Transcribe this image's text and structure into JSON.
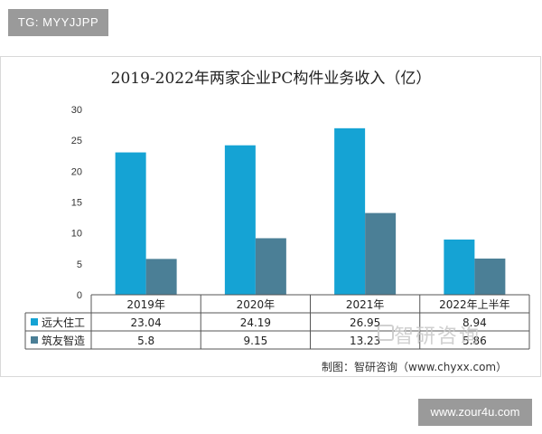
{
  "top_tag": "TG: MYYJJPP",
  "bottom_badge": "www.zour4u.com",
  "watermark": "智研咨询",
  "source": "制图：智研咨询（www.chyxx.com）",
  "colors": {
    "series1": "#15a3d4",
    "series2": "#4b7f96"
  },
  "chart_data": {
    "type": "bar",
    "title": "2019-2022年两家企业PC构件业务收入（亿）",
    "categories": [
      "2019年",
      "2020年",
      "2021年",
      "2022年上半年"
    ],
    "series": [
      {
        "name": "远大住工",
        "values": [
          23.04,
          24.19,
          26.95,
          8.94
        ],
        "labels": [
          "23.04",
          "24.19",
          "26.95",
          "8.94"
        ]
      },
      {
        "name": "筑友智造",
        "values": [
          5.8,
          9.15,
          13.23,
          5.86
        ],
        "labels": [
          "5.8",
          "9.15",
          "13.23",
          "5.86"
        ]
      }
    ],
    "ylim": [
      0,
      30
    ],
    "yticks": [
      0,
      5,
      10,
      15,
      20,
      25,
      30
    ],
    "ytick_labels": [
      "0",
      "5",
      "10",
      "15",
      "20",
      "25",
      "30"
    ],
    "grid": false,
    "legend": "data-table"
  }
}
